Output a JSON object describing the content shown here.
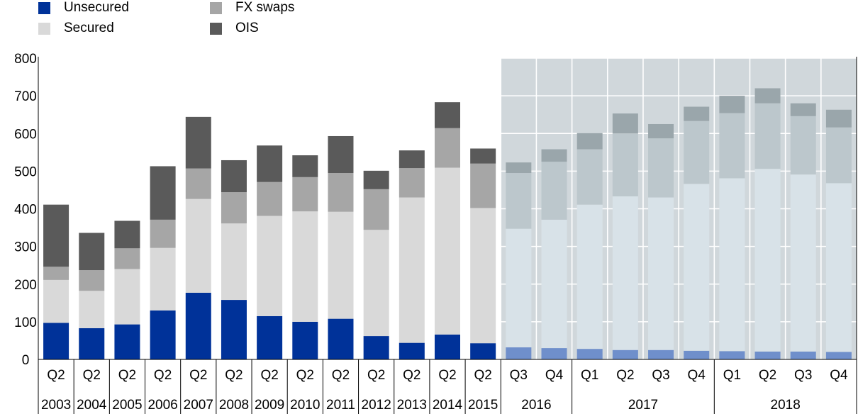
{
  "chart_data": {
    "type": "bar",
    "stacked": true,
    "ylim": [
      0,
      800
    ],
    "yticks": [
      0,
      100,
      200,
      300,
      400,
      500,
      600,
      700,
      800
    ],
    "grid": true,
    "legend_position": "top-left",
    "title": "",
    "xlabel": "",
    "ylabel": "",
    "categories": [
      {
        "q": "Q2",
        "year": "2003"
      },
      {
        "q": "Q2",
        "year": "2004"
      },
      {
        "q": "Q2",
        "year": "2005"
      },
      {
        "q": "Q2",
        "year": "2006"
      },
      {
        "q": "Q2",
        "year": "2007"
      },
      {
        "q": "Q2",
        "year": "2008"
      },
      {
        "q": "Q2",
        "year": "2009"
      },
      {
        "q": "Q2",
        "year": "2010"
      },
      {
        "q": "Q2",
        "year": "2011"
      },
      {
        "q": "Q2",
        "year": "2012"
      },
      {
        "q": "Q2",
        "year": "2013"
      },
      {
        "q": "Q2",
        "year": "2014"
      },
      {
        "q": "Q2",
        "year": "2015"
      },
      {
        "q": "Q3",
        "year": "2016"
      },
      {
        "q": "Q4",
        "year": "2016"
      },
      {
        "q": "Q1",
        "year": "2017"
      },
      {
        "q": "Q2",
        "year": "2017"
      },
      {
        "q": "Q3",
        "year": "2017"
      },
      {
        "q": "Q4",
        "year": "2017"
      },
      {
        "q": "Q1",
        "year": "2018"
      },
      {
        "q": "Q2",
        "year": "2018"
      },
      {
        "q": "Q3",
        "year": "2018"
      },
      {
        "q": "Q4",
        "year": "2018"
      }
    ],
    "year_groups": [
      {
        "label": "2016",
        "from": 13,
        "to": 14
      },
      {
        "label": "2017",
        "from": 15,
        "to": 18
      },
      {
        "label": "2018",
        "from": 19,
        "to": 22
      }
    ],
    "forecast_start_index": 13,
    "series": [
      {
        "name": "Unsecured",
        "color": "#003299",
        "forecast_color": "#6f8fcb",
        "values": [
          97,
          83,
          93,
          130,
          177,
          158,
          115,
          100,
          108,
          62,
          44,
          66,
          43,
          32,
          30,
          28,
          25,
          25,
          23,
          22,
          21,
          21,
          20
        ]
      },
      {
        "name": "Secured",
        "color": "#d9d9d9",
        "forecast_color": "#d8e2e8",
        "values": [
          114,
          99,
          147,
          166,
          249,
          203,
          266,
          293,
          284,
          282,
          386,
          443,
          359,
          315,
          341,
          383,
          408,
          405,
          443,
          459,
          485,
          470,
          448
        ]
      },
      {
        "name": "FX swaps",
        "color": "#a6a6a6",
        "forecast_color": "#bcc7cc",
        "values": [
          35,
          55,
          55,
          75,
          81,
          83,
          90,
          91,
          103,
          108,
          78,
          105,
          118,
          148,
          154,
          147,
          167,
          157,
          167,
          173,
          174,
          155,
          148
        ]
      },
      {
        "name": "OIS",
        "color": "#5a5a5a",
        "forecast_color": "#9aa6ab",
        "values": [
          165,
          99,
          73,
          142,
          137,
          85,
          97,
          58,
          98,
          49,
          47,
          69,
          40,
          28,
          33,
          43,
          53,
          38,
          38,
          46,
          40,
          34,
          47
        ]
      }
    ]
  }
}
